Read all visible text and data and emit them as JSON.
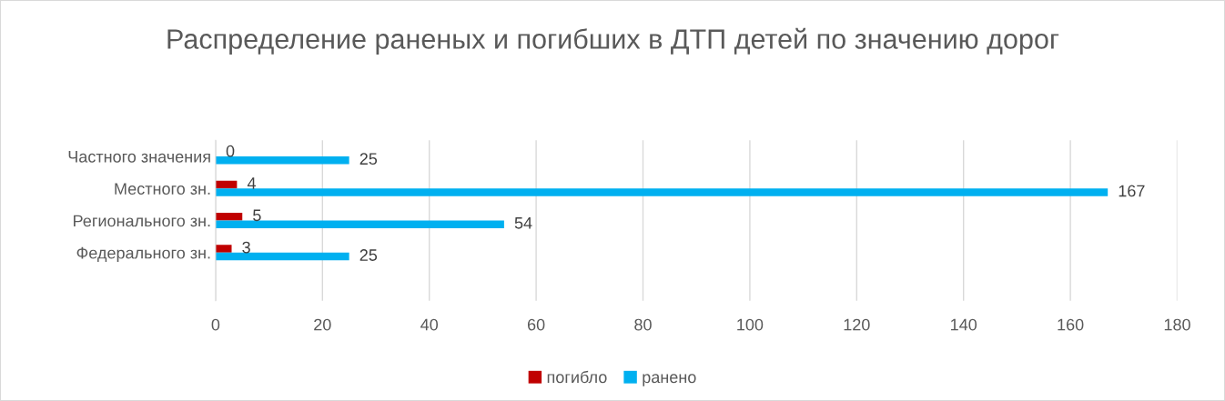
{
  "chart_data": {
    "type": "bar",
    "orientation": "horizontal",
    "title": "Распределение раненых и погибших в ДТП детей по значению дорог",
    "categories": [
      "Частного значения",
      "Местного зн.",
      "Регионального зн.",
      "Федерального зн."
    ],
    "series": [
      {
        "name": "погибло",
        "color": "#c00000",
        "values": [
          0,
          4,
          5,
          3
        ]
      },
      {
        "name": "ранено",
        "color": "#00b0f0",
        "values": [
          25,
          167,
          54,
          25
        ]
      }
    ],
    "xlim": [
      0,
      180
    ],
    "xticks": [
      0,
      20,
      40,
      60,
      80,
      100,
      120,
      140,
      160,
      180
    ],
    "grid": "x",
    "legend": "bottom",
    "data_labels": true
  }
}
